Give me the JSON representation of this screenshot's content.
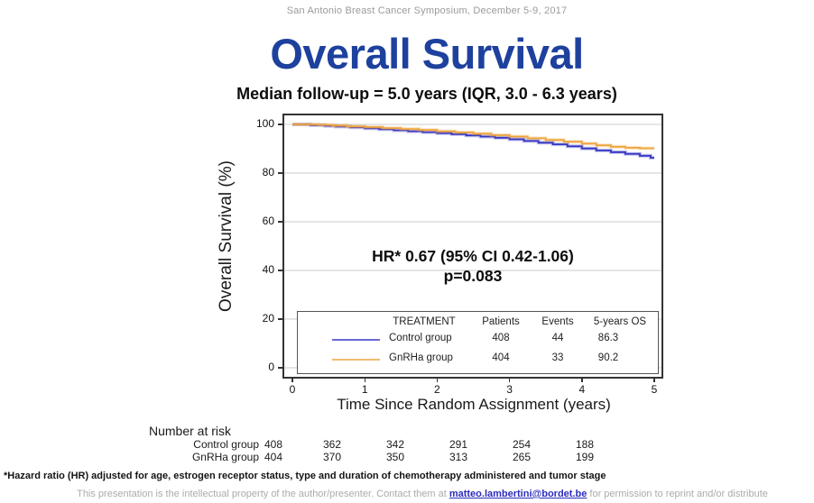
{
  "slide": {
    "conference_line": "San Antonio Breast Cancer Symposium, December 5-9, 2017",
    "title": "Overall Survival",
    "subtitle": "Median follow-up = 5.0 years (IQR, 3.0 - 6.3 years)",
    "footnote": "*Hazard ratio (HR) adjusted for age, estrogen receptor status, type and duration of chemotherapy administered and tumor stage",
    "disclaimer_prefix": "This presentation is the intellectual property of the author/presenter. Contact them at ",
    "disclaimer_email": "matteo.lambertini@bordet.be",
    "disclaimer_suffix": " for permission to reprint and/or distribute"
  },
  "colors": {
    "title_blue": "#1e419e",
    "control_line": "#3535c4",
    "gnrha_line": "#eea43e",
    "gridline": "#cbcbcb",
    "email_link": "#2b2bbf"
  },
  "chart_data": {
    "type": "line",
    "subtype": "kaplan-meier-step",
    "title": "Overall Survival",
    "xlabel": "Time Since Random Assignment (years)",
    "ylabel": "Overall Survival (%)",
    "xlim": [
      0,
      5
    ],
    "ylim": [
      0,
      100
    ],
    "x_ticks": [
      0,
      1,
      2,
      3,
      4,
      5
    ],
    "y_ticks": [
      0,
      20,
      40,
      60,
      80,
      100
    ],
    "grid": "horizontal",
    "legend_position": "inside-bottom",
    "annotation": {
      "line1": "HR* 0.67 (95% CI 0.42-1.06)",
      "line2": "p=0.083"
    },
    "series": [
      {
        "name": "Control group",
        "color": "#3535c4",
        "points": [
          [
            0,
            100
          ],
          [
            0.25,
            99.7
          ],
          [
            0.45,
            99.4
          ],
          [
            0.6,
            99.1
          ],
          [
            0.8,
            98.8
          ],
          [
            1.0,
            98.4
          ],
          [
            1.2,
            98.0
          ],
          [
            1.4,
            97.6
          ],
          [
            1.6,
            97.2
          ],
          [
            1.8,
            96.8
          ],
          [
            2.0,
            96.4
          ],
          [
            2.2,
            96.0
          ],
          [
            2.4,
            95.5
          ],
          [
            2.6,
            95.0
          ],
          [
            2.8,
            94.5
          ],
          [
            3.0,
            93.9
          ],
          [
            3.2,
            93.2
          ],
          [
            3.4,
            92.5
          ],
          [
            3.6,
            91.8
          ],
          [
            3.8,
            91.0
          ],
          [
            4.0,
            90.1
          ],
          [
            4.2,
            89.3
          ],
          [
            4.4,
            88.6
          ],
          [
            4.6,
            87.9
          ],
          [
            4.8,
            87.1
          ],
          [
            4.95,
            86.3
          ],
          [
            5.0,
            86.3
          ]
        ]
      },
      {
        "name": "GnRHa group",
        "color": "#eea43e",
        "points": [
          [
            0,
            100
          ],
          [
            0.35,
            99.8
          ],
          [
            0.55,
            99.5
          ],
          [
            0.75,
            99.2
          ],
          [
            1.0,
            98.9
          ],
          [
            1.25,
            98.5
          ],
          [
            1.5,
            98.1
          ],
          [
            1.75,
            97.7
          ],
          [
            2.0,
            97.2
          ],
          [
            2.25,
            96.7
          ],
          [
            2.5,
            96.2
          ],
          [
            2.75,
            95.6
          ],
          [
            3.0,
            95.0
          ],
          [
            3.25,
            94.3
          ],
          [
            3.5,
            93.6
          ],
          [
            3.75,
            92.9
          ],
          [
            4.0,
            92.1
          ],
          [
            4.2,
            91.4
          ],
          [
            4.4,
            90.8
          ],
          [
            4.6,
            90.4
          ],
          [
            4.8,
            90.2
          ],
          [
            5.0,
            90.2
          ]
        ]
      }
    ],
    "legend_table": {
      "headers": [
        "TREATMENT",
        "Patients",
        "Events",
        "5-years OS"
      ],
      "rows": [
        {
          "treatment": "Control group",
          "patients": "408",
          "events": "44",
          "os": "86.3"
        },
        {
          "treatment": "GnRHa group",
          "patients": "404",
          "events": "33",
          "os": "90.2"
        }
      ]
    },
    "number_at_risk": {
      "label": "Number at risk",
      "times": [
        0,
        1,
        2,
        3,
        4,
        5
      ],
      "rows": [
        {
          "name": "Control group",
          "values": [
            "408",
            "362",
            "342",
            "291",
            "254",
            "188"
          ]
        },
        {
          "name": "GnRHa group",
          "values": [
            "404",
            "370",
            "350",
            "313",
            "265",
            "199"
          ]
        }
      ]
    }
  }
}
